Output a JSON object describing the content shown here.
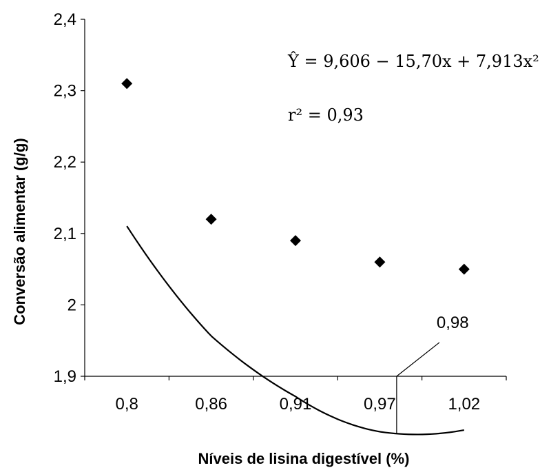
{
  "chart_data": {
    "type": "scatter",
    "xlabel": "Níveis de lisina digestível (%)",
    "ylabel": "Conversão alimentar (g/g)",
    "categories": [
      "0,8",
      "0,86",
      "0,91",
      "0,97",
      "1,02"
    ],
    "x": [
      0.8,
      0.86,
      0.91,
      0.97,
      1.02
    ],
    "series": [
      {
        "values": [
          2.31,
          2.12,
          2.09,
          2.06,
          2.05
        ],
        "color": "#000000",
        "marker": "diamond"
      }
    ],
    "fit": {
      "equation_text": "Ŷ = 9,606 − 15,70x + 7,913x²",
      "r2_text": "r² = 0,93",
      "coefficients": [
        9.606,
        -15.7,
        7.913
      ],
      "x_range": [
        0.8,
        1.02
      ],
      "optimum_x": 0.98,
      "optimum_label": "0,98"
    },
    "ylim": [
      1.9,
      2.4
    ],
    "yticks": [
      1.9,
      2.0,
      2.1,
      2.2,
      2.3,
      2.4
    ],
    "ytick_labels": [
      "1,9",
      "2",
      "2,1",
      "2,2",
      "2,3",
      "2,4"
    ],
    "grid": false,
    "legend": "none"
  }
}
